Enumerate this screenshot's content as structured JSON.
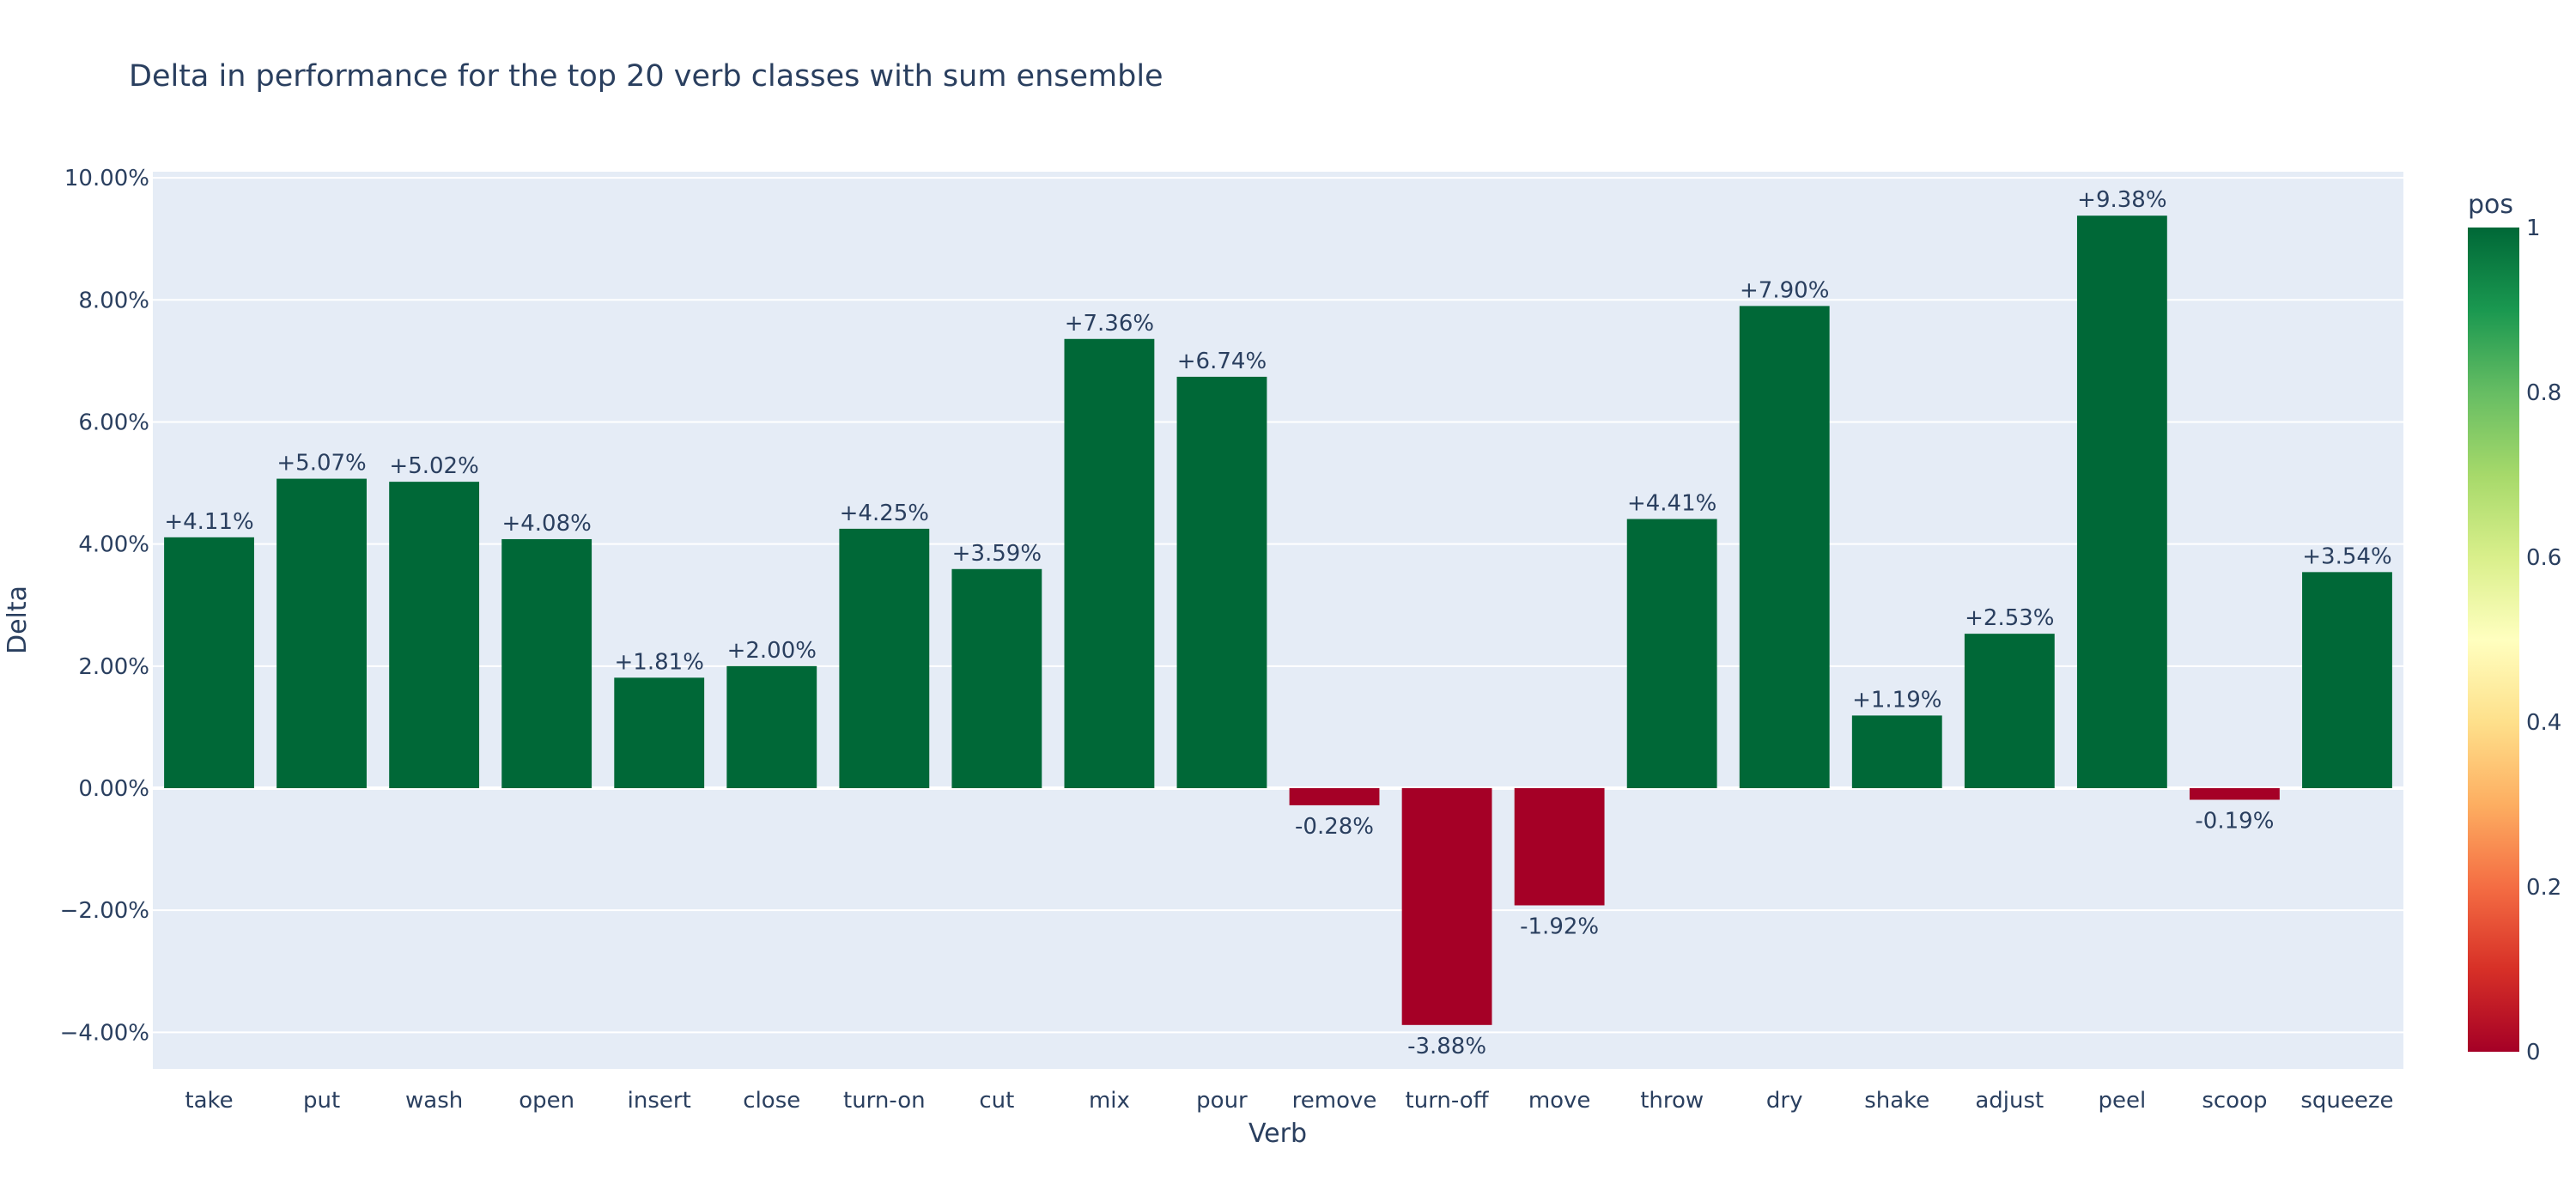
{
  "chart_data": {
    "type": "bar",
    "title": "Delta in performance for the top 20 verb classes with sum ensemble",
    "xlabel": "Verb",
    "ylabel": "Delta",
    "categories": [
      "take",
      "put",
      "wash",
      "open",
      "insert",
      "close",
      "turn-on",
      "cut",
      "mix",
      "pour",
      "remove",
      "turn-off",
      "move",
      "throw",
      "dry",
      "shake",
      "adjust",
      "peel",
      "scoop",
      "squeeze"
    ],
    "values": [
      4.11,
      5.07,
      5.02,
      4.08,
      1.81,
      2.0,
      4.25,
      3.59,
      7.36,
      6.74,
      -0.28,
      -3.88,
      -1.92,
      4.41,
      7.9,
      1.19,
      2.53,
      9.38,
      -0.19,
      3.54
    ],
    "data_labels": [
      "+4.11%",
      "+5.07%",
      "+5.02%",
      "+4.08%",
      "+1.81%",
      "+2.00%",
      "+4.25%",
      "+3.59%",
      "+7.36%",
      "+6.74%",
      "-0.28%",
      "-3.88%",
      "-1.92%",
      "+4.41%",
      "+7.90%",
      "+1.19%",
      "+2.53%",
      "+9.38%",
      "-0.19%",
      "+3.54%"
    ],
    "pos": [
      1,
      1,
      1,
      1,
      1,
      1,
      1,
      1,
      1,
      1,
      0,
      0,
      0,
      1,
      1,
      1,
      1,
      1,
      0,
      1
    ],
    "ylim": [
      -4.6,
      10.1
    ],
    "yticks": [
      -4,
      -2,
      0,
      2,
      4,
      6,
      8,
      10
    ],
    "ytick_labels": [
      "−4.00%",
      "−2.00%",
      "0.00%",
      "2.00%",
      "4.00%",
      "6.00%",
      "8.00%",
      "10.00%"
    ],
    "colorbar": {
      "title": "pos",
      "colorscale": "RdYlGn",
      "ticks": [
        "0",
        "0.2",
        "0.4",
        "0.6",
        "0.8",
        "1"
      ],
      "stops": [
        "#a50026",
        "#d73027",
        "#f46d43",
        "#fdae61",
        "#fee08b",
        "#ffffbf",
        "#d9ef8b",
        "#a6d96a",
        "#66bd63",
        "#1a9850",
        "#006837"
      ]
    },
    "colors": {
      "positive": "#006837",
      "negative": "#a50026",
      "plot_bg": "#e5ecf6",
      "grid": "#ffffff",
      "text": "#2a3f5f"
    },
    "grid": true
  }
}
